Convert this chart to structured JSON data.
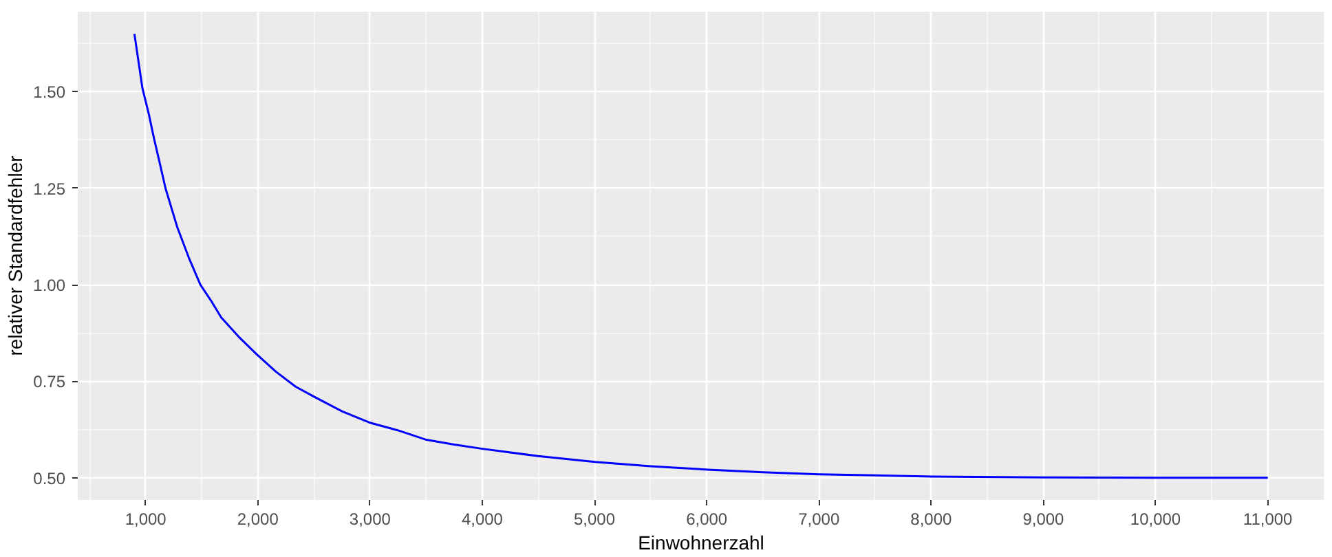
{
  "chart_data": {
    "type": "line",
    "xlabel": "Einwohnerzahl",
    "ylabel": "relativer Standardfehler",
    "x": [
      900,
      971,
      1030,
      1074,
      1130,
      1177,
      1281,
      1385,
      1488,
      1580,
      1674,
      1830,
      1989,
      2160,
      2336,
      2501,
      2750,
      2994,
      3246,
      3494,
      3750,
      4000,
      4500,
      5004,
      5500,
      6011,
      6500,
      7000,
      8000,
      9000,
      10000,
      11000
    ],
    "series": [
      {
        "color": "#0000ff",
        "values": [
          1.65,
          1.51,
          1.44,
          1.38,
          1.31,
          1.25,
          1.15,
          1.07,
          1.0,
          0.96,
          0.915,
          0.865,
          0.82,
          0.775,
          0.736,
          0.71,
          0.672,
          0.643,
          0.623,
          0.599,
          0.586,
          0.575,
          0.556,
          0.541,
          0.53,
          0.521,
          0.514,
          0.509,
          0.503,
          0.501,
          0.5,
          0.5
        ]
      }
    ],
    "xlim": [
      395,
      11505
    ],
    "ylim": [
      0.4425,
      1.7075
    ],
    "xticks": [
      {
        "value": 1000,
        "label": "1,000"
      },
      {
        "value": 2000,
        "label": "2,000"
      },
      {
        "value": 3000,
        "label": "3,000"
      },
      {
        "value": 4000,
        "label": "4,000"
      },
      {
        "value": 5000,
        "label": "5,000"
      },
      {
        "value": 6000,
        "label": "6,000"
      },
      {
        "value": 7000,
        "label": "7,000"
      },
      {
        "value": 8000,
        "label": "8,000"
      },
      {
        "value": 9000,
        "label": "9,000"
      },
      {
        "value": 10000,
        "label": "10,000"
      },
      {
        "value": 11000,
        "label": "11,000"
      }
    ],
    "yticks": [
      {
        "value": 0.5,
        "label": "0.50"
      },
      {
        "value": 0.75,
        "label": "0.75"
      },
      {
        "value": 1.0,
        "label": "1.00"
      },
      {
        "value": 1.25,
        "label": "1.25"
      },
      {
        "value": 1.5,
        "label": "1.50"
      }
    ],
    "grid": true,
    "marker": "none",
    "line_style": "solid"
  }
}
